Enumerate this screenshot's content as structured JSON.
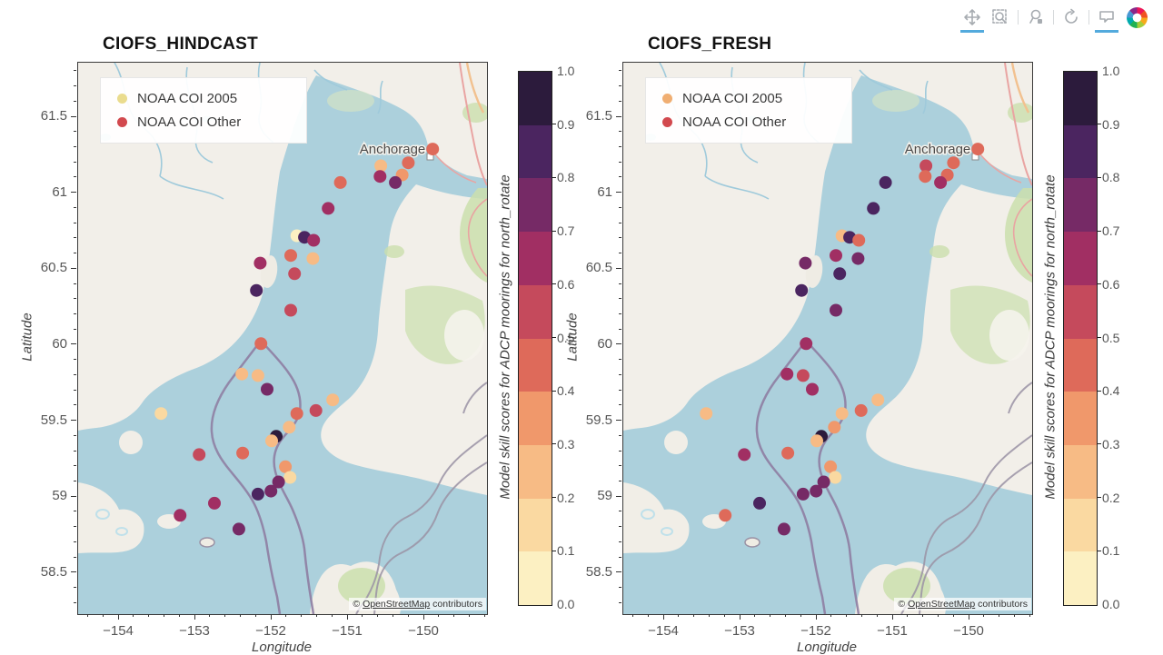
{
  "toolbar": {
    "tools": [
      {
        "name": "pan",
        "active": true
      },
      {
        "name": "box-zoom",
        "active": false
      },
      {
        "name": "save",
        "active": false
      },
      {
        "name": "reset",
        "active": false
      },
      {
        "name": "hover",
        "active": true
      }
    ]
  },
  "colormap": {
    "bins": [
      "#FCF0C2",
      "#FAD9A1",
      "#F7BB85",
      "#F0986B",
      "#DE6A5A",
      "#C54A5C",
      "#A12F63",
      "#762A66",
      "#4B2560",
      "#2C1B3C"
    ]
  },
  "map": {
    "city_label": "Anchorage",
    "attribution": {
      "prefix": "© ",
      "link": "OpenStreetMap",
      "suffix": " contributors"
    }
  },
  "plots": [
    {
      "title": "CIOFS_HINDCAST",
      "xlabel": "Longitude",
      "ylabel": "Latitude",
      "x_tick_labels": [
        "−154",
        "−153",
        "−152",
        "−151",
        "−150"
      ],
      "x_tick_values": [
        -154,
        -153,
        -152,
        -151,
        -150
      ],
      "y_tick_labels": [
        "61.5",
        "61",
        "60.5",
        "60",
        "59.5",
        "59",
        "58.5"
      ],
      "y_tick_values": [
        61.5,
        61,
        60.5,
        60,
        59.5,
        59,
        58.5
      ],
      "legend": [
        {
          "label": "NOAA COI 2005",
          "color": "#EADC8E"
        },
        {
          "label": "NOAA COI Other",
          "color": "#D2494E"
        }
      ],
      "colorbar": {
        "title": "Model skill scores for ADCP moorings for north_rotate",
        "tick_labels": [
          "1.0",
          "0.9",
          "0.8",
          "0.7",
          "0.6",
          "0.5",
          "0.4",
          "0.3",
          "0.2",
          "0.1",
          "0.0"
        ]
      }
    },
    {
      "title": "CIOFS_FRESH",
      "xlabel": "Longitude",
      "ylabel": "Latitude",
      "x_tick_labels": [
        "−154",
        "−153",
        "−152",
        "−151",
        "−150"
      ],
      "x_tick_values": [
        -154,
        -153,
        -152,
        -151,
        -150
      ],
      "y_tick_labels": [
        "61.5",
        "61",
        "60.5",
        "60",
        "59.5",
        "59",
        "58.5"
      ],
      "y_tick_values": [
        61.5,
        61,
        60.5,
        60,
        59.5,
        59,
        58.5
      ],
      "legend": [
        {
          "label": "NOAA COI 2005",
          "color": "#F0AE72"
        },
        {
          "label": "NOAA COI Other",
          "color": "#D2494E"
        }
      ],
      "colorbar": {
        "title": "Model skill scores for ADCP moorings for north_rotate",
        "tick_labels": [
          "1.0",
          "0.9",
          "0.8",
          "0.7",
          "0.6",
          "0.5",
          "0.4",
          "0.3",
          "0.2",
          "0.1",
          "0.0"
        ]
      }
    }
  ],
  "chart_data": [
    {
      "type": "scatter",
      "title": "CIOFS_HINDCAST",
      "xlabel": "Longitude",
      "ylabel": "Latitude",
      "xlim": [
        -154.54,
        -149.18
      ],
      "ylim": [
        58.23,
        61.86
      ],
      "colorbar_label": "Model skill scores for ADCP moorings for north_rotate",
      "colorbar_range": [
        0,
        1
      ],
      "legend_entries": [
        "NOAA COI 2005",
        "NOAA COI Other"
      ],
      "x": [
        -149.89,
        -150.21,
        -150.57,
        -150.29,
        -150.58,
        -150.38,
        -151.1,
        -151.26,
        -151.67,
        -151.57,
        -151.45,
        -151.75,
        -151.46,
        -152.15,
        -151.7,
        -152.2,
        -151.75,
        -152.14,
        -152.39,
        -152.18,
        -152.06,
        -151.2,
        -151.42,
        -151.67,
        -151.77,
        -151.94,
        -152.0,
        -153.45,
        -152.95,
        -152.38,
        -151.82,
        -151.76,
        -151.91,
        -152.01,
        -152.18,
        -152.75,
        -153.2,
        -152.43
      ],
      "y": [
        61.29,
        61.2,
        61.18,
        61.12,
        61.11,
        61.07,
        61.07,
        60.9,
        60.72,
        60.71,
        60.69,
        60.59,
        60.57,
        60.54,
        60.47,
        60.36,
        60.23,
        60.01,
        59.81,
        59.8,
        59.71,
        59.64,
        59.57,
        59.55,
        59.46,
        59.4,
        59.37,
        59.55,
        59.28,
        59.29,
        59.2,
        59.13,
        59.1,
        59.04,
        59.02,
        58.96,
        58.88,
        58.79
      ],
      "values": [
        0.45,
        0.45,
        0.25,
        0.35,
        0.65,
        0.75,
        0.45,
        0.65,
        0.05,
        0.85,
        0.65,
        0.45,
        0.25,
        0.65,
        0.55,
        0.85,
        0.55,
        0.45,
        0.25,
        0.25,
        0.75,
        0.25,
        0.55,
        0.45,
        0.25,
        0.95,
        0.25,
        0.15,
        0.55,
        0.45,
        0.35,
        0.15,
        0.75,
        0.75,
        0.85,
        0.65,
        0.65,
        0.75
      ]
    },
    {
      "type": "scatter",
      "title": "CIOFS_FRESH",
      "xlabel": "Longitude",
      "ylabel": "Latitude",
      "xlim": [
        -154.54,
        -149.18
      ],
      "ylim": [
        58.23,
        61.86
      ],
      "colorbar_label": "Model skill scores for ADCP moorings for north_rotate",
      "colorbar_range": [
        0,
        1
      ],
      "legend_entries": [
        "NOAA COI 2005",
        "NOAA COI Other"
      ],
      "x": [
        -149.89,
        -150.21,
        -150.57,
        -150.29,
        -150.58,
        -150.38,
        -151.1,
        -151.26,
        -151.67,
        -151.57,
        -151.45,
        -151.75,
        -151.46,
        -152.15,
        -151.7,
        -152.2,
        -151.75,
        -152.14,
        -152.39,
        -152.18,
        -152.06,
        -151.2,
        -151.42,
        -151.67,
        -151.77,
        -151.94,
        -152.0,
        -153.45,
        -152.95,
        -152.38,
        -151.82,
        -151.76,
        -151.91,
        -152.01,
        -152.18,
        -152.75,
        -153.2,
        -152.43
      ],
      "y": [
        61.29,
        61.2,
        61.18,
        61.12,
        61.11,
        61.07,
        61.07,
        60.9,
        60.72,
        60.71,
        60.69,
        60.59,
        60.57,
        60.54,
        60.47,
        60.36,
        60.23,
        60.01,
        59.81,
        59.8,
        59.71,
        59.64,
        59.57,
        59.55,
        59.46,
        59.4,
        59.37,
        59.55,
        59.28,
        59.29,
        59.2,
        59.13,
        59.1,
        59.04,
        59.02,
        58.96,
        58.88,
        58.79
      ],
      "values": [
        0.45,
        0.45,
        0.55,
        0.45,
        0.45,
        0.65,
        0.85,
        0.85,
        0.25,
        0.85,
        0.45,
        0.65,
        0.75,
        0.75,
        0.85,
        0.85,
        0.75,
        0.65,
        0.65,
        0.55,
        0.65,
        0.25,
        0.45,
        0.25,
        0.35,
        0.95,
        0.25,
        0.25,
        0.65,
        0.45,
        0.35,
        0.15,
        0.75,
        0.75,
        0.75,
        0.85,
        0.45,
        0.75
      ]
    }
  ]
}
